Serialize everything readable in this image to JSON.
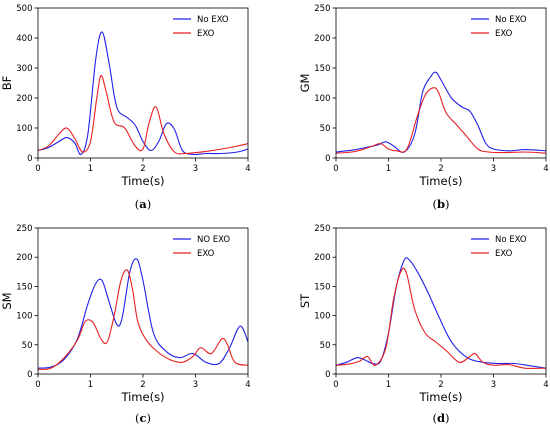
{
  "figure": {
    "colors": {
      "no_exo": "#2020e8",
      "exo": "#e82020",
      "axis": "#000000"
    }
  },
  "chart_data": [
    {
      "id": "a",
      "type": "line",
      "caption_label": "a",
      "ylabel": "BF",
      "xlabel": "Time(s)",
      "xlim": [
        0,
        4
      ],
      "ylim": [
        0,
        500
      ],
      "xticks": [
        0,
        1,
        2,
        3,
        4
      ],
      "yticks": [
        0,
        100,
        200,
        300,
        400,
        500
      ],
      "legend_position": "top-right",
      "series": [
        {
          "name": "No EXO",
          "color": "#2020e8",
          "x": [
            0,
            0.2,
            0.4,
            0.55,
            0.7,
            0.82,
            0.95,
            1.1,
            1.22,
            1.35,
            1.5,
            1.7,
            1.85,
            2.0,
            2.15,
            2.3,
            2.45,
            2.6,
            2.75,
            2.95,
            3.2,
            3.5,
            3.8,
            4.0
          ],
          "y": [
            25,
            35,
            55,
            68,
            50,
            12,
            80,
            330,
            420,
            320,
            170,
            135,
            110,
            55,
            25,
            55,
            115,
            95,
            25,
            12,
            15,
            15,
            20,
            30
          ]
        },
        {
          "name": "EXO",
          "color": "#e82020",
          "x": [
            0,
            0.2,
            0.4,
            0.55,
            0.7,
            0.85,
            1.0,
            1.12,
            1.2,
            1.3,
            1.45,
            1.65,
            1.85,
            2.0,
            2.12,
            2.25,
            2.4,
            2.6,
            2.8,
            3.0,
            3.2,
            3.5,
            3.8,
            4.0
          ],
          "y": [
            25,
            40,
            80,
            100,
            65,
            20,
            55,
            200,
            275,
            220,
            120,
            100,
            40,
            30,
            120,
            170,
            80,
            20,
            15,
            18,
            22,
            30,
            40,
            48
          ]
        }
      ]
    },
    {
      "id": "b",
      "type": "line",
      "caption_label": "b",
      "ylabel": "GM",
      "xlabel": "Time(s)",
      "xlim": [
        0,
        4
      ],
      "ylim": [
        0,
        250
      ],
      "xticks": [
        0,
        1,
        2,
        3,
        4
      ],
      "yticks": [
        0,
        50,
        100,
        150,
        200,
        250
      ],
      "legend_position": "top-right",
      "series": [
        {
          "name": "No EXO",
          "color": "#2020e8",
          "x": [
            0,
            0.3,
            0.6,
            0.8,
            0.95,
            1.1,
            1.3,
            1.5,
            1.65,
            1.8,
            1.9,
            2.0,
            2.2,
            2.4,
            2.55,
            2.7,
            2.85,
            3.0,
            3.3,
            3.6,
            4.0
          ],
          "y": [
            10,
            13,
            18,
            22,
            27,
            20,
            10,
            40,
            110,
            135,
            143,
            130,
            100,
            85,
            78,
            55,
            25,
            15,
            12,
            14,
            12
          ]
        },
        {
          "name": "EXO",
          "color": "#e82020",
          "x": [
            0,
            0.3,
            0.5,
            0.7,
            0.85,
            1.0,
            1.15,
            1.35,
            1.55,
            1.7,
            1.85,
            1.95,
            2.1,
            2.3,
            2.5,
            2.7,
            2.9,
            3.2,
            3.6,
            4.0
          ],
          "y": [
            8,
            10,
            14,
            20,
            24,
            15,
            12,
            15,
            70,
            105,
            117,
            110,
            75,
            55,
            35,
            15,
            10,
            9,
            10,
            8
          ]
        }
      ]
    },
    {
      "id": "c",
      "type": "line",
      "caption_label": "c",
      "ylabel": "SM",
      "xlabel": "Time(s)",
      "xlim": [
        0,
        4
      ],
      "ylim": [
        0,
        250
      ],
      "xticks": [
        0,
        1,
        2,
        3,
        4
      ],
      "yticks": [
        0,
        50,
        100,
        150,
        200,
        250
      ],
      "legend_position": "top-right",
      "series": [
        {
          "name": "NO EXO",
          "color": "#2020e8",
          "x": [
            0,
            0.25,
            0.5,
            0.75,
            0.95,
            1.1,
            1.22,
            1.35,
            1.5,
            1.6,
            1.75,
            1.88,
            2.0,
            2.2,
            2.45,
            2.7,
            2.95,
            3.2,
            3.45,
            3.65,
            3.85,
            4.0
          ],
          "y": [
            10,
            12,
            25,
            60,
            120,
            155,
            160,
            125,
            85,
            95,
            175,
            197,
            160,
            70,
            38,
            28,
            35,
            20,
            18,
            45,
            82,
            55
          ]
        },
        {
          "name": "EXO",
          "color": "#e82020",
          "x": [
            0,
            0.25,
            0.5,
            0.75,
            0.9,
            1.05,
            1.2,
            1.32,
            1.45,
            1.58,
            1.7,
            1.8,
            1.9,
            2.05,
            2.25,
            2.5,
            2.75,
            2.95,
            3.1,
            3.3,
            3.5,
            3.6,
            3.75,
            4.0
          ],
          "y": [
            8,
            10,
            28,
            58,
            90,
            88,
            60,
            55,
            100,
            160,
            178,
            145,
            90,
            60,
            40,
            25,
            20,
            30,
            45,
            35,
            60,
            52,
            20,
            15
          ]
        }
      ]
    },
    {
      "id": "d",
      "type": "line",
      "caption_label": "d",
      "ylabel": "ST",
      "xlabel": "Time(s)",
      "xlim": [
        0,
        4
      ],
      "ylim": [
        0,
        250
      ],
      "xticks": [
        0,
        1,
        2,
        3,
        4
      ],
      "yticks": [
        0,
        50,
        100,
        150,
        200,
        250
      ],
      "legend_position": "top-right",
      "series": [
        {
          "name": "No EXO",
          "color": "#2020e8",
          "x": [
            0,
            0.2,
            0.4,
            0.55,
            0.7,
            0.85,
            1.0,
            1.15,
            1.3,
            1.4,
            1.55,
            1.75,
            1.95,
            2.2,
            2.5,
            2.8,
            3.1,
            3.4,
            3.7,
            4.0
          ],
          "y": [
            15,
            20,
            28,
            24,
            18,
            22,
            70,
            150,
            195,
            195,
            175,
            140,
            100,
            55,
            28,
            20,
            18,
            18,
            14,
            10
          ]
        },
        {
          "name": "EXO",
          "color": "#e82020",
          "x": [
            0,
            0.25,
            0.45,
            0.6,
            0.75,
            0.95,
            1.1,
            1.25,
            1.35,
            1.5,
            1.7,
            1.9,
            2.1,
            2.35,
            2.55,
            2.65,
            2.8,
            3.0,
            3.3,
            3.6,
            4.0
          ],
          "y": [
            15,
            17,
            22,
            30,
            15,
            45,
            130,
            178,
            170,
            110,
            70,
            55,
            40,
            20,
            30,
            35,
            20,
            15,
            16,
            10,
            10
          ]
        }
      ]
    }
  ]
}
